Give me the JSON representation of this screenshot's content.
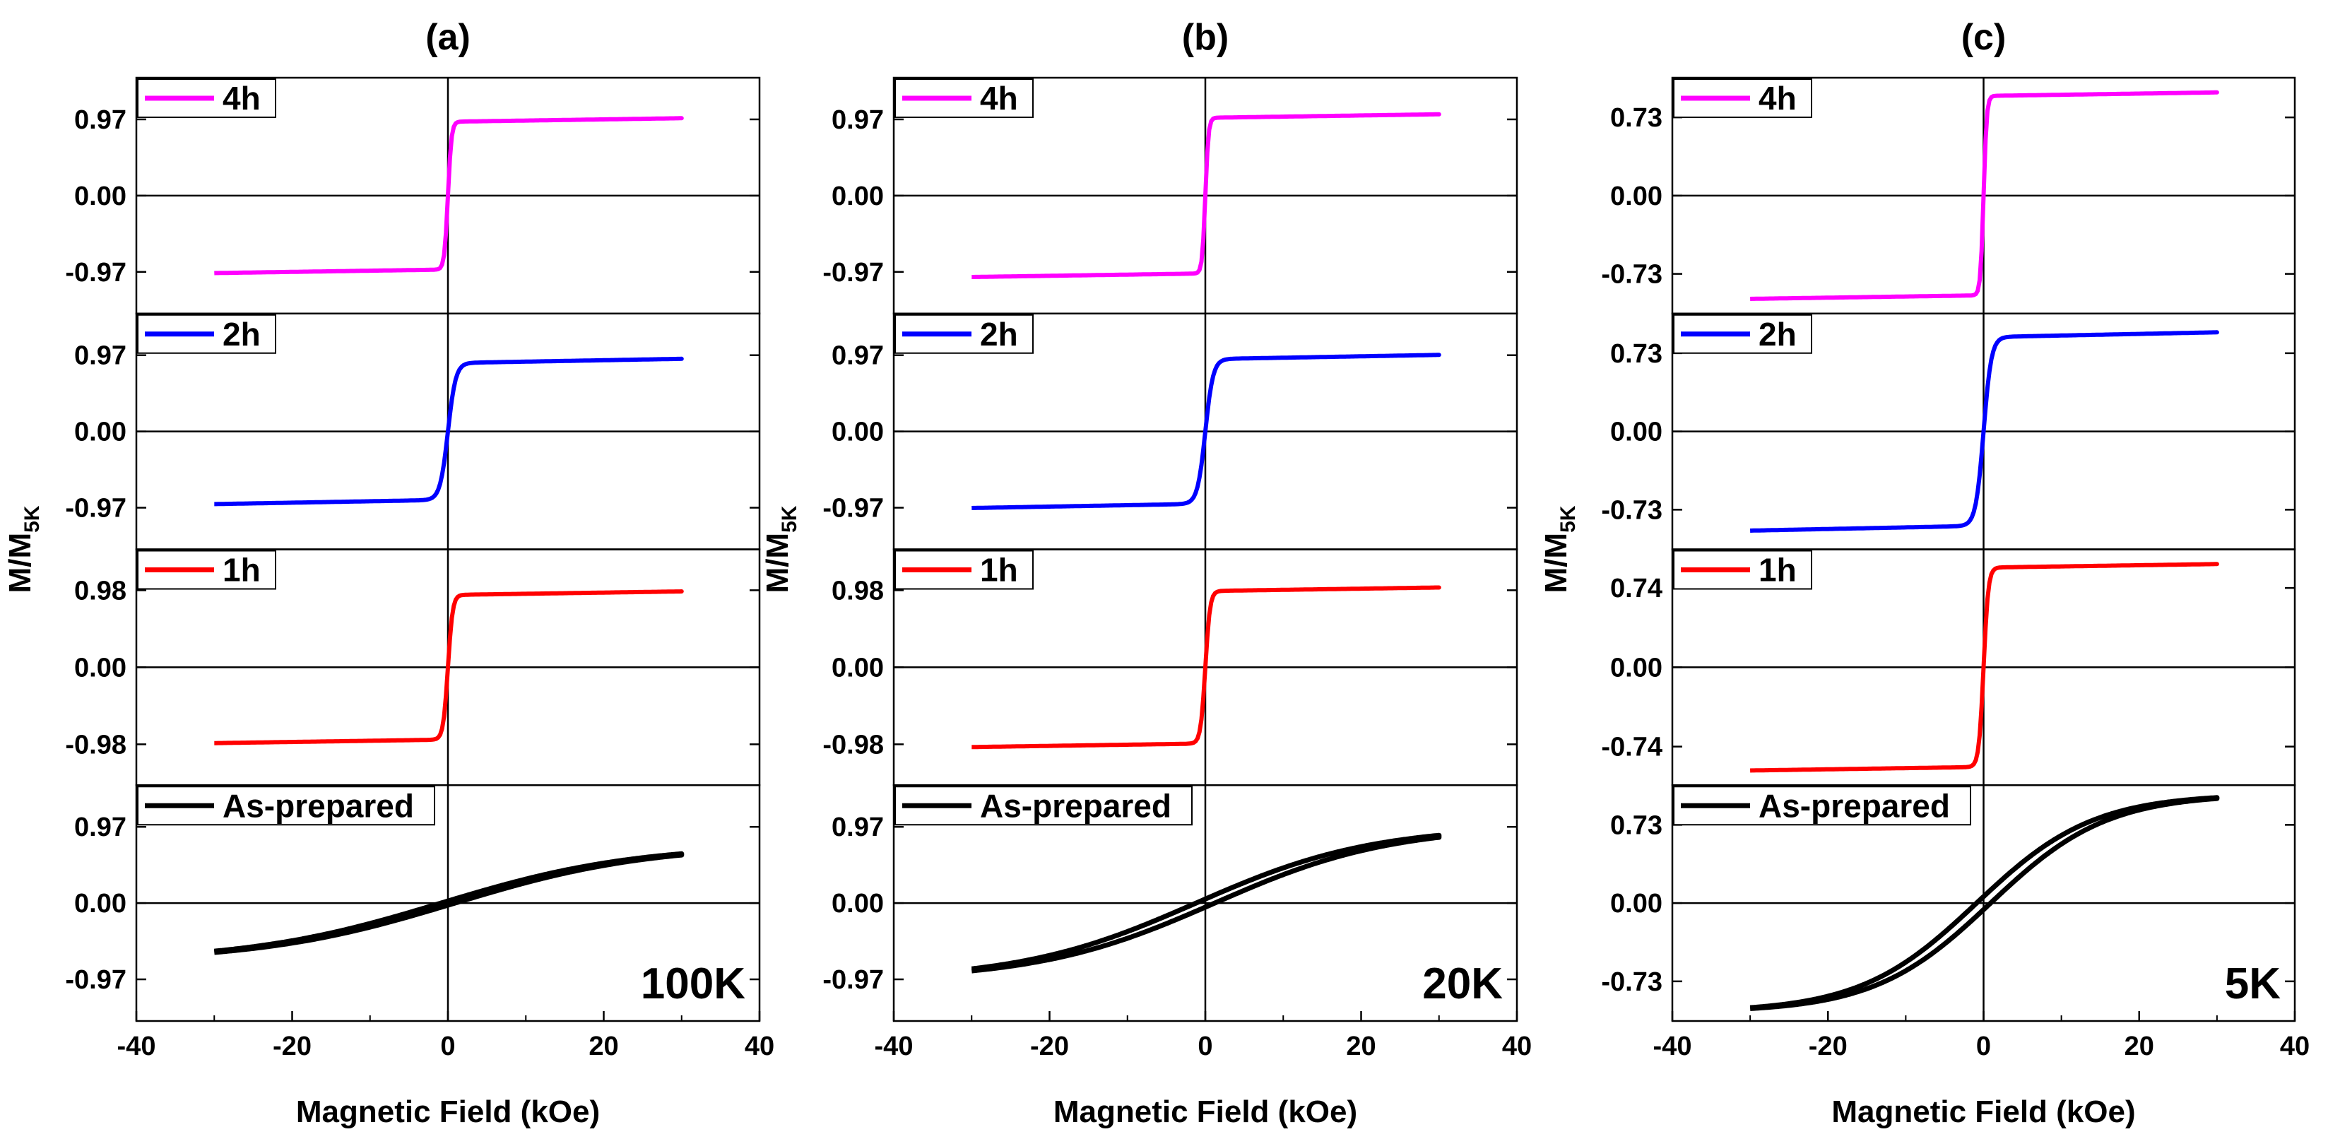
{
  "chart_data": [
    {
      "type": "line",
      "panel_label": "(a)",
      "temperature": "100K",
      "xlabel": "Magnetic Field (kOe)",
      "ylabel_main": "M/M",
      "ylabel_sub": "5K",
      "xlim": [
        -40,
        40
      ],
      "xticks": [
        "-40",
        "-20",
        "0",
        "20",
        "40"
      ],
      "subplots": [
        {
          "legend": "4h",
          "color": "#ff00ff",
          "yticks": [
            "0.97",
            "0.00",
            "-0.97"
          ],
          "ylim": [
            -1.5,
            1.5
          ],
          "saturation": 0.94,
          "sat_neg": 0.94,
          "field_scale": 0.45,
          "slope": 0.0015,
          "loop": 0.0
        },
        {
          "legend": "2h",
          "color": "#0000ff",
          "yticks": [
            "0.97",
            "0.00",
            "-0.97"
          ],
          "ylim": [
            -1.5,
            1.5
          ],
          "saturation": 0.87,
          "sat_neg": 0.87,
          "field_scale": 1.0,
          "slope": 0.0018,
          "loop": 0.0
        },
        {
          "legend": "1h",
          "color": "#ff0000",
          "yticks": [
            "0.98",
            "0.00",
            "-0.98"
          ],
          "ylim": [
            -1.5,
            1.5
          ],
          "saturation": 0.92,
          "sat_neg": 0.92,
          "field_scale": 0.6,
          "slope": 0.0015,
          "loop": 0.0
        },
        {
          "legend": "As-prepared",
          "color": "#000000",
          "yticks": [
            "0.97",
            "0.00",
            "-0.97"
          ],
          "ylim": [
            -1.5,
            1.5
          ],
          "linear": true,
          "endpoint": 0.62,
          "curvature": 0.05,
          "loop": 0.03
        }
      ]
    },
    {
      "type": "line",
      "panel_label": "(b)",
      "temperature": "20K",
      "xlabel": "Magnetic Field (kOe)",
      "ylabel_main": "M/M",
      "ylabel_sub": "5K",
      "xlim": [
        -40,
        40
      ],
      "xticks": [
        "-40",
        "-20",
        "0",
        "20",
        "40"
      ],
      "subplots": [
        {
          "legend": "4h",
          "color": "#ff00ff",
          "yticks": [
            "0.97",
            "0.00",
            "-0.97"
          ],
          "ylim": [
            -1.5,
            1.5
          ],
          "saturation": 0.99,
          "sat_neg": 0.99,
          "field_scale": 0.4,
          "slope": 0.0015,
          "loop": 0.0
        },
        {
          "legend": "2h",
          "color": "#0000ff",
          "yticks": [
            "0.97",
            "0.00",
            "-0.97"
          ],
          "ylim": [
            -1.5,
            1.5
          ],
          "saturation": 0.92,
          "sat_neg": 0.92,
          "field_scale": 1.0,
          "slope": 0.0018,
          "loop": 0.0
        },
        {
          "legend": "1h",
          "color": "#ff0000",
          "yticks": [
            "0.98",
            "0.00",
            "-0.98"
          ],
          "ylim": [
            -1.5,
            1.5
          ],
          "saturation": 0.97,
          "sat_neg": 0.97,
          "field_scale": 0.6,
          "slope": 0.0015,
          "loop": 0.0
        },
        {
          "legend": "As-prepared",
          "color": "#000000",
          "yticks": [
            "0.97",
            "0.00",
            "-0.97"
          ],
          "ylim": [
            -1.5,
            1.5
          ],
          "linear": true,
          "endpoint": 0.85,
          "curvature": 0.08,
          "loop": 0.04
        }
      ]
    },
    {
      "type": "line",
      "panel_label": "(c)",
      "temperature": "5K",
      "xlabel": "Magnetic Field (kOe)",
      "ylabel_main": "M/M",
      "ylabel_sub": "5K",
      "xlim": [
        -40,
        40
      ],
      "xticks": [
        "-40",
        "-20",
        "0",
        "20",
        "40"
      ],
      "subplots": [
        {
          "legend": "4h",
          "color": "#ff00ff",
          "yticks": [
            "0.73",
            "0.00",
            "-0.73"
          ],
          "ylim": [
            -1.1,
            1.1
          ],
          "saturation": 0.93,
          "sat_neg": 0.93,
          "field_scale": 0.4,
          "slope": 0.0011,
          "loop": 0.0
        },
        {
          "legend": "2h",
          "color": "#0000ff",
          "yticks": [
            "0.73",
            "0.00",
            "-0.73"
          ],
          "ylim": [
            -1.1,
            1.1
          ],
          "saturation": 0.88,
          "sat_neg": 0.88,
          "field_scale": 1.0,
          "slope": 0.0015,
          "loop": 0.0
        },
        {
          "legend": "1h",
          "color": "#ff0000",
          "yticks": [
            "0.74",
            "0.00",
            "-0.74"
          ],
          "ylim": [
            -1.1,
            1.1
          ],
          "saturation": 0.93,
          "sat_neg": 0.93,
          "field_scale": 0.6,
          "slope": 0.0011,
          "loop": 0.0
        },
        {
          "legend": "As-prepared",
          "color": "#000000",
          "yticks": [
            "0.73",
            "0.00",
            "-0.73"
          ],
          "ylim": [
            -1.1,
            1.1
          ],
          "linear": true,
          "endpoint": 0.98,
          "curvature": 0.25,
          "loop": 0.03
        }
      ]
    }
  ]
}
